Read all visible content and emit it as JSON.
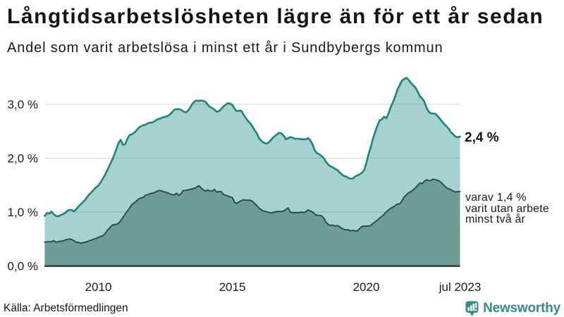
{
  "title": "Långtidsarbetslösheten lägre än för ett år sedan",
  "subtitle": "Andel som varit arbetslösa i minst ett år i Sundbybergs kommun",
  "source": "Källa: Arbetsförmedlingen",
  "branding": {
    "name": "Newsworthy",
    "color": "#338c85"
  },
  "annotations": {
    "series1_end_label": "2,4 %",
    "series2_end_label": "varav 1,4 %\nvarit utan arbete\nminst två år"
  },
  "colors": {
    "line1": "#17877d",
    "fill1": "rgba(23,135,125,0.38)",
    "line2": "#2b423d",
    "fill2": "rgba(104,151,146,0.92)",
    "grid": "#d9d9d9",
    "axis": "#404040",
    "text": "#1a1a1a"
  },
  "chart_data": {
    "type": "area",
    "title": "Långtidsarbetslösheten lägre än för ett år sedan",
    "subtitle": "Andel som varit arbetslösa i minst ett år i Sundbybergs kommun",
    "unit": "%",
    "x": [
      "2008-01",
      "2008-02",
      "2008-03",
      "2008-04",
      "2008-05",
      "2008-06",
      "2008-07",
      "2008-08",
      "2008-09",
      "2008-10",
      "2008-11",
      "2008-12",
      "2009-01",
      "2009-02",
      "2009-03",
      "2009-04",
      "2009-05",
      "2009-06",
      "2009-07",
      "2009-08",
      "2009-09",
      "2009-10",
      "2009-11",
      "2009-12",
      "2010-01",
      "2010-02",
      "2010-03",
      "2010-04",
      "2010-05",
      "2010-06",
      "2010-07",
      "2010-08",
      "2010-09",
      "2010-10",
      "2010-11",
      "2010-12",
      "2011-01",
      "2011-02",
      "2011-03",
      "2011-04",
      "2011-05",
      "2011-06",
      "2011-07",
      "2011-08",
      "2011-09",
      "2011-10",
      "2011-11",
      "2011-12",
      "2012-01",
      "2012-02",
      "2012-03",
      "2012-04",
      "2012-05",
      "2012-06",
      "2012-07",
      "2012-08",
      "2012-09",
      "2012-10",
      "2012-11",
      "2012-12",
      "2013-01",
      "2013-02",
      "2013-03",
      "2013-04",
      "2013-05",
      "2013-06",
      "2013-07",
      "2013-08",
      "2013-09",
      "2013-10",
      "2013-11",
      "2013-12",
      "2014-01",
      "2014-02",
      "2014-03",
      "2014-04",
      "2014-05",
      "2014-06",
      "2014-07",
      "2014-08",
      "2014-09",
      "2014-10",
      "2014-11",
      "2014-12",
      "2015-01",
      "2015-02",
      "2015-03",
      "2015-04",
      "2015-05",
      "2015-06",
      "2015-07",
      "2015-08",
      "2015-09",
      "2015-10",
      "2015-11",
      "2015-12",
      "2016-01",
      "2016-02",
      "2016-03",
      "2016-04",
      "2016-05",
      "2016-06",
      "2016-07",
      "2016-08",
      "2016-09",
      "2016-10",
      "2016-11",
      "2016-12",
      "2017-01",
      "2017-02",
      "2017-03",
      "2017-04",
      "2017-05",
      "2017-06",
      "2017-07",
      "2017-08",
      "2017-09",
      "2017-10",
      "2017-11",
      "2017-12",
      "2018-01",
      "2018-02",
      "2018-03",
      "2018-04",
      "2018-05",
      "2018-06",
      "2018-07",
      "2018-08",
      "2018-09",
      "2018-10",
      "2018-11",
      "2018-12",
      "2019-01",
      "2019-02",
      "2019-03",
      "2019-04",
      "2019-05",
      "2019-06",
      "2019-07",
      "2019-08",
      "2019-09",
      "2019-10",
      "2019-11",
      "2019-12",
      "2020-01",
      "2020-02",
      "2020-03",
      "2020-04",
      "2020-05",
      "2020-06",
      "2020-07",
      "2020-08",
      "2020-09",
      "2020-10",
      "2020-11",
      "2020-12",
      "2021-01",
      "2021-02",
      "2021-03",
      "2021-04",
      "2021-05",
      "2021-06",
      "2021-07",
      "2021-08",
      "2021-09",
      "2021-10",
      "2021-11",
      "2021-12",
      "2022-01",
      "2022-02",
      "2022-03",
      "2022-04",
      "2022-05",
      "2022-06",
      "2022-07",
      "2022-08",
      "2022-09",
      "2022-10",
      "2022-11",
      "2022-12",
      "2023-01",
      "2023-02",
      "2023-03",
      "2023-04",
      "2023-05",
      "2023-06",
      "2023-07"
    ],
    "series": [
      {
        "name": "Arbetslösa minst ett år",
        "values": [
          0.93,
          0.98,
          0.97,
          1.01,
          0.96,
          0.93,
          0.92,
          0.94,
          0.96,
          0.98,
          1.02,
          1.04,
          1.04,
          1.01,
          1.05,
          1.1,
          1.14,
          1.18,
          1.22,
          1.28,
          1.33,
          1.37,
          1.42,
          1.46,
          1.49,
          1.55,
          1.62,
          1.69,
          1.78,
          1.86,
          1.95,
          2.05,
          2.16,
          2.28,
          2.34,
          2.25,
          2.26,
          2.36,
          2.43,
          2.44,
          2.47,
          2.51,
          2.56,
          2.59,
          2.61,
          2.62,
          2.64,
          2.66,
          2.66,
          2.68,
          2.71,
          2.73,
          2.74,
          2.76,
          2.77,
          2.78,
          2.81,
          2.85,
          2.9,
          2.91,
          2.91,
          2.9,
          2.87,
          2.85,
          2.87,
          2.93,
          3.0,
          3.05,
          3.07,
          3.06,
          3.07,
          3.06,
          3.05,
          2.99,
          2.95,
          2.93,
          2.9,
          2.86,
          2.87,
          2.91,
          2.96,
          2.99,
          3.02,
          3.01,
          2.99,
          2.92,
          2.87,
          2.88,
          2.88,
          2.81,
          2.75,
          2.69,
          2.65,
          2.59,
          2.52,
          2.46,
          2.37,
          2.32,
          2.29,
          2.27,
          2.28,
          2.32,
          2.37,
          2.41,
          2.44,
          2.47,
          2.46,
          2.42,
          2.35,
          2.37,
          2.39,
          2.38,
          2.36,
          2.36,
          2.36,
          2.35,
          2.35,
          2.35,
          2.37,
          2.33,
          2.25,
          2.14,
          2.09,
          2.07,
          2.04,
          2.0,
          1.93,
          1.88,
          1.85,
          1.83,
          1.8,
          1.78,
          1.74,
          1.7,
          1.67,
          1.66,
          1.63,
          1.62,
          1.62,
          1.66,
          1.68,
          1.7,
          1.73,
          1.77,
          1.9,
          2.07,
          2.2,
          2.36,
          2.49,
          2.6,
          2.7,
          2.72,
          2.77,
          2.74,
          2.83,
          2.95,
          3.04,
          3.15,
          3.27,
          3.36,
          3.44,
          3.47,
          3.49,
          3.45,
          3.4,
          3.35,
          3.31,
          3.24,
          3.15,
          3.11,
          3.05,
          2.94,
          2.86,
          2.83,
          2.83,
          2.82,
          2.78,
          2.73,
          2.68,
          2.63,
          2.59,
          2.54,
          2.48,
          2.44,
          2.4,
          2.39,
          2.4
        ],
        "latest_value_label": "2,4 %"
      },
      {
        "name": "Arbetslösa minst två år",
        "values": [
          0.44,
          0.45,
          0.45,
          0.45,
          0.47,
          0.44,
          0.45,
          0.46,
          0.46,
          0.48,
          0.49,
          0.5,
          0.49,
          0.47,
          0.44,
          0.44,
          0.42,
          0.43,
          0.44,
          0.45,
          0.47,
          0.48,
          0.5,
          0.51,
          0.53,
          0.55,
          0.56,
          0.6,
          0.66,
          0.7,
          0.75,
          0.77,
          0.77,
          0.79,
          0.84,
          0.9,
          0.96,
          1.02,
          1.07,
          1.14,
          1.17,
          1.2,
          1.24,
          1.26,
          1.27,
          1.31,
          1.32,
          1.34,
          1.35,
          1.36,
          1.38,
          1.4,
          1.4,
          1.38,
          1.37,
          1.36,
          1.34,
          1.32,
          1.32,
          1.35,
          1.31,
          1.34,
          1.4,
          1.4,
          1.41,
          1.42,
          1.43,
          1.44,
          1.46,
          1.49,
          1.45,
          1.41,
          1.39,
          1.41,
          1.39,
          1.39,
          1.42,
          1.37,
          1.38,
          1.38,
          1.33,
          1.31,
          1.3,
          1.28,
          1.27,
          1.18,
          1.16,
          1.19,
          1.21,
          1.23,
          1.22,
          1.22,
          1.22,
          1.2,
          1.16,
          1.12,
          1.07,
          1.04,
          1.02,
          1.01,
          1.0,
          0.98,
          0.99,
          1.0,
          1.01,
          1.01,
          1.01,
          1.02,
          1.05,
          1.08,
          1.0,
          0.99,
          0.99,
          0.99,
          0.99,
          1.0,
          0.99,
          1.01,
          1.04,
          1.02,
          1.0,
          0.96,
          0.94,
          0.94,
          0.93,
          0.89,
          0.81,
          0.77,
          0.75,
          0.76,
          0.74,
          0.75,
          0.73,
          0.7,
          0.68,
          0.67,
          0.67,
          0.65,
          0.66,
          0.65,
          0.65,
          0.69,
          0.73,
          0.74,
          0.74,
          0.74,
          0.75,
          0.79,
          0.82,
          0.85,
          0.89,
          0.92,
          0.96,
          1.0,
          1.04,
          1.07,
          1.09,
          1.12,
          1.15,
          1.15,
          1.21,
          1.28,
          1.32,
          1.36,
          1.38,
          1.41,
          1.45,
          1.49,
          1.54,
          1.53,
          1.57,
          1.6,
          1.58,
          1.59,
          1.61,
          1.6,
          1.59,
          1.57,
          1.53,
          1.49,
          1.45,
          1.43,
          1.41,
          1.39,
          1.37,
          1.38,
          1.38
        ],
        "latest_value_label": "1,4 %"
      }
    ],
    "ylim": [
      0,
      3.6
    ],
    "grid": "horizontal",
    "legend": "none",
    "yticks": [
      {
        "value": 0.0,
        "label": "0,0 %"
      },
      {
        "value": 1.0,
        "label": "1,0 %"
      },
      {
        "value": 2.0,
        "label": "2,0 %"
      },
      {
        "value": 3.0,
        "label": "3,0 %"
      }
    ],
    "xticks": [
      {
        "date": "2010-01",
        "label": "2010"
      },
      {
        "date": "2015-01",
        "label": "2015"
      },
      {
        "date": "2020-01",
        "label": "2020"
      },
      {
        "date": "2023-07",
        "label": "jul 2023"
      }
    ]
  }
}
